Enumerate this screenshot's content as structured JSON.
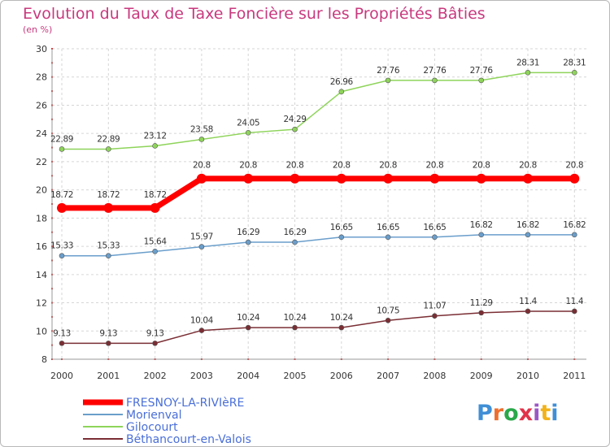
{
  "chart_data": {
    "type": "line",
    "title": "Evolution du Taux de Taxe Foncière sur les Propriétés Bâties",
    "subtitle": "(en %)",
    "xlabel": "",
    "ylabel": "",
    "x": [
      "2000",
      "2001",
      "2002",
      "2003",
      "2004",
      "2005",
      "2006",
      "2007",
      "2008",
      "2009",
      "2010",
      "2011"
    ],
    "ylim": [
      8,
      30
    ],
    "yticks": [
      "8",
      "10",
      "12",
      "14",
      "16",
      "18",
      "20",
      "22",
      "24",
      "26",
      "28",
      "30"
    ],
    "grid": true,
    "legend_position": "bottom-left",
    "series": [
      {
        "name": "FRESNOY-LA-RIVIèRE",
        "color": "#ff0000",
        "values": [
          18.72,
          18.72,
          18.72,
          20.8,
          20.8,
          20.8,
          20.8,
          20.8,
          20.8,
          20.8,
          20.8,
          20.8
        ],
        "labels": [
          "18.72",
          "18.72",
          "18.72",
          "20.8",
          "20.8",
          "20.8",
          "20.8",
          "20.8",
          "20.8",
          "20.8",
          "20.8",
          "20.8"
        ]
      },
      {
        "name": "Morienval",
        "color": "#6a9ecb",
        "values": [
          15.33,
          15.33,
          15.64,
          15.97,
          16.29,
          16.29,
          16.65,
          16.65,
          16.65,
          16.82,
          16.82,
          16.82
        ],
        "labels": [
          "15.33",
          "15.33",
          "15.64",
          "15.97",
          "16.29",
          "16.29",
          "16.65",
          "16.65",
          "16.65",
          "16.82",
          "16.82",
          "16.82"
        ]
      },
      {
        "name": "Gilocourt",
        "color": "#8ed45a",
        "values": [
          22.89,
          22.89,
          23.12,
          23.58,
          24.05,
          24.29,
          26.96,
          27.76,
          27.76,
          27.76,
          28.31,
          28.31
        ],
        "labels": [
          "22.89",
          "22.89",
          "23.12",
          "23.58",
          "24.05",
          "24.29",
          "26.96",
          "27.76",
          "27.76",
          "27.76",
          "28.31",
          "28.31"
        ]
      },
      {
        "name": "Béthancourt-en-Valois",
        "color": "#7a2e34",
        "values": [
          9.13,
          9.13,
          9.13,
          10.04,
          10.24,
          10.24,
          10.24,
          10.75,
          11.07,
          11.29,
          11.4,
          11.4
        ],
        "labels": [
          "9.13",
          "9.13",
          "9.13",
          "10.04",
          "10.24",
          "10.24",
          "10.24",
          "10.75",
          "11.07",
          "11.29",
          "11.4",
          "11.4"
        ]
      }
    ]
  },
  "logo": {
    "text": "Proxiti"
  }
}
